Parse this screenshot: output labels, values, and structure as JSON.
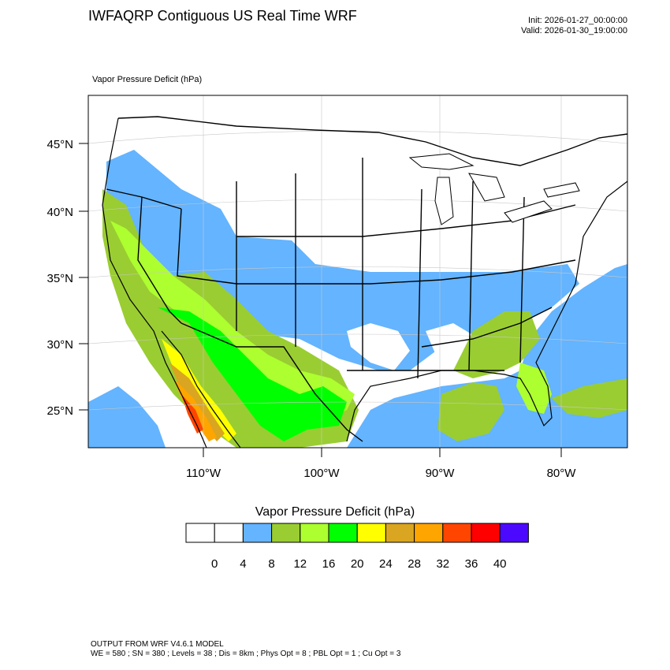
{
  "header": {
    "title": "IWFAQRP Contiguous US Real Time WRF",
    "init": "Init: 2026-01-27_00:00:00",
    "valid": "Valid: 2026-01-30_19:00:00"
  },
  "map": {
    "field_label": "Vapor Pressure Deficit   (hPa)",
    "lat_labels": [
      "45°N",
      "40°N",
      "35°N",
      "30°N",
      "25°N"
    ],
    "lon_labels": [
      "110°W",
      "100°W",
      "90°W",
      "80°W"
    ],
    "colors": {
      "ocean_low": "#64b4ff",
      "land_low": "#9acd32",
      "mid": "#adff2f",
      "green": "#00ff00",
      "yellow": "#ffff00",
      "gold": "#daa520",
      "orange": "#ffa500",
      "red_orange": "#ff4500",
      "red": "#ff0000"
    }
  },
  "colorbar": {
    "title": "Vapor Pressure Deficit  (hPa)",
    "colors": [
      "#ffffff",
      "#ffffff",
      "#64b4ff",
      "#9acd32",
      "#adff2f",
      "#00ff00",
      "#ffff00",
      "#daa520",
      "#ffa500",
      "#ff4500",
      "#ff0000",
      "#4b0aff"
    ],
    "tick_labels": [
      "0",
      "4",
      "8",
      "12",
      "16",
      "20",
      "24",
      "28",
      "32",
      "36",
      "40"
    ]
  },
  "footer": {
    "line1": "OUTPUT FROM WRF V4.6.1 MODEL",
    "line2": "WE = 580 ; SN = 380 ; Levels = 38 ; Dis = 8km ; Phys Opt = 8 ; PBL Opt = 1 ; Cu Opt = 3"
  }
}
